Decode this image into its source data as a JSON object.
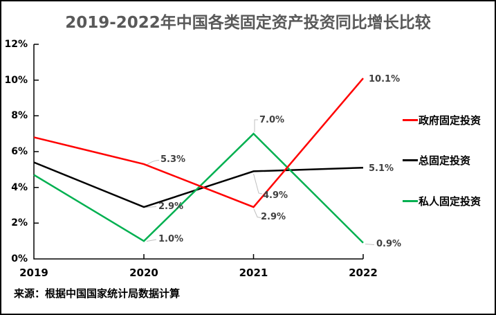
{
  "title": "2019-2022年中国各类固定资产投资同比增长比较",
  "source_note": "来源：根据中国国家统计局数据计算",
  "colors": {
    "government_line": "#FF0000",
    "total_line": "#000000",
    "private_line": "#00B050",
    "title_text": "#595959",
    "data_label_text": "#404040",
    "leader_line": "#BFBFBF",
    "axis": "#000000",
    "frame_border": "#000000"
  },
  "legend": {
    "position": "right",
    "items": [
      {
        "label": "政府固定投资",
        "color": "#FF0000"
      },
      {
        "label": "总固定投资",
        "color": "#000000"
      },
      {
        "label": "私人固定投资",
        "color": "#00B050"
      }
    ]
  },
  "chart_data": {
    "type": "line",
    "title": "2019-2022年中国各类固定资产投资同比增长比较",
    "categories": [
      "2019",
      "2020",
      "2021",
      "2022"
    ],
    "series": [
      {
        "name": "政府固定投资",
        "color": "#FF0000",
        "values": [
          6.8,
          5.3,
          2.9,
          10.1
        ]
      },
      {
        "name": "总固定投资",
        "color": "#000000",
        "values": [
          5.4,
          2.9,
          4.9,
          5.1
        ]
      },
      {
        "name": "私人固定投资",
        "color": "#00B050",
        "values": [
          4.7,
          1.0,
          7.0,
          0.9
        ]
      }
    ],
    "ylim": [
      0,
      12
    ],
    "ytick_labels_top_to_bottom": [
      "12%",
      "10%",
      "8%",
      "6%",
      "4%",
      "2%",
      "0%"
    ],
    "grid": false,
    "legend_position": "right",
    "point_labels": [
      {
        "series": "政府固定投资",
        "category": "2020",
        "text": "5.3%"
      },
      {
        "series": "总固定投资",
        "category": "2020",
        "text": "2.9%"
      },
      {
        "series": "私人固定投资",
        "category": "2020",
        "text": "1.0%"
      },
      {
        "series": "私人固定投资",
        "category": "2021",
        "text": "7.0%"
      },
      {
        "series": "总固定投资",
        "category": "2021",
        "text": "4.9%"
      },
      {
        "series": "政府固定投资",
        "category": "2021",
        "text": "2.9%"
      },
      {
        "series": "政府固定投资",
        "category": "2022",
        "text": "10.1%"
      },
      {
        "series": "总固定投资",
        "category": "2022",
        "text": "5.1%"
      },
      {
        "series": "私人固定投资",
        "category": "2022",
        "text": "0.9%"
      }
    ]
  }
}
